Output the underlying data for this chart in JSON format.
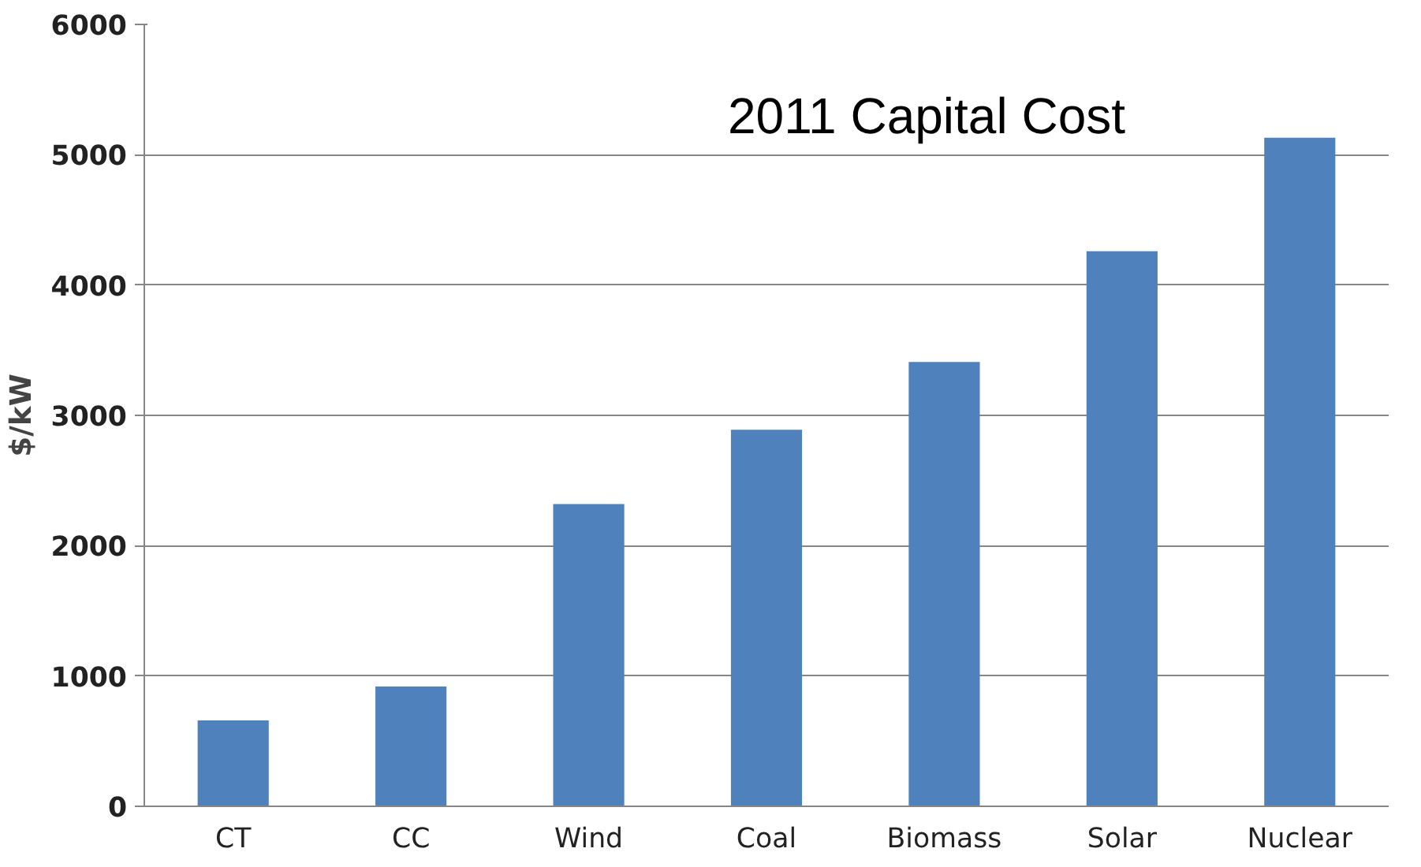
{
  "chart_data": {
    "type": "bar",
    "title": "2011 Capital Cost",
    "ylabel": "$/kW",
    "categories": [
      "CT",
      "CC",
      "Wind",
      "Coal",
      "Biomass",
      "Solar",
      "Nuclear"
    ],
    "values": [
      660,
      920,
      2320,
      2890,
      3410,
      4260,
      5130
    ],
    "color": "#4f81bd",
    "ylim": [
      0,
      6000
    ],
    "yticks": [
      0,
      1000,
      2000,
      3000,
      4000,
      5000,
      6000
    ],
    "grid": "y"
  }
}
